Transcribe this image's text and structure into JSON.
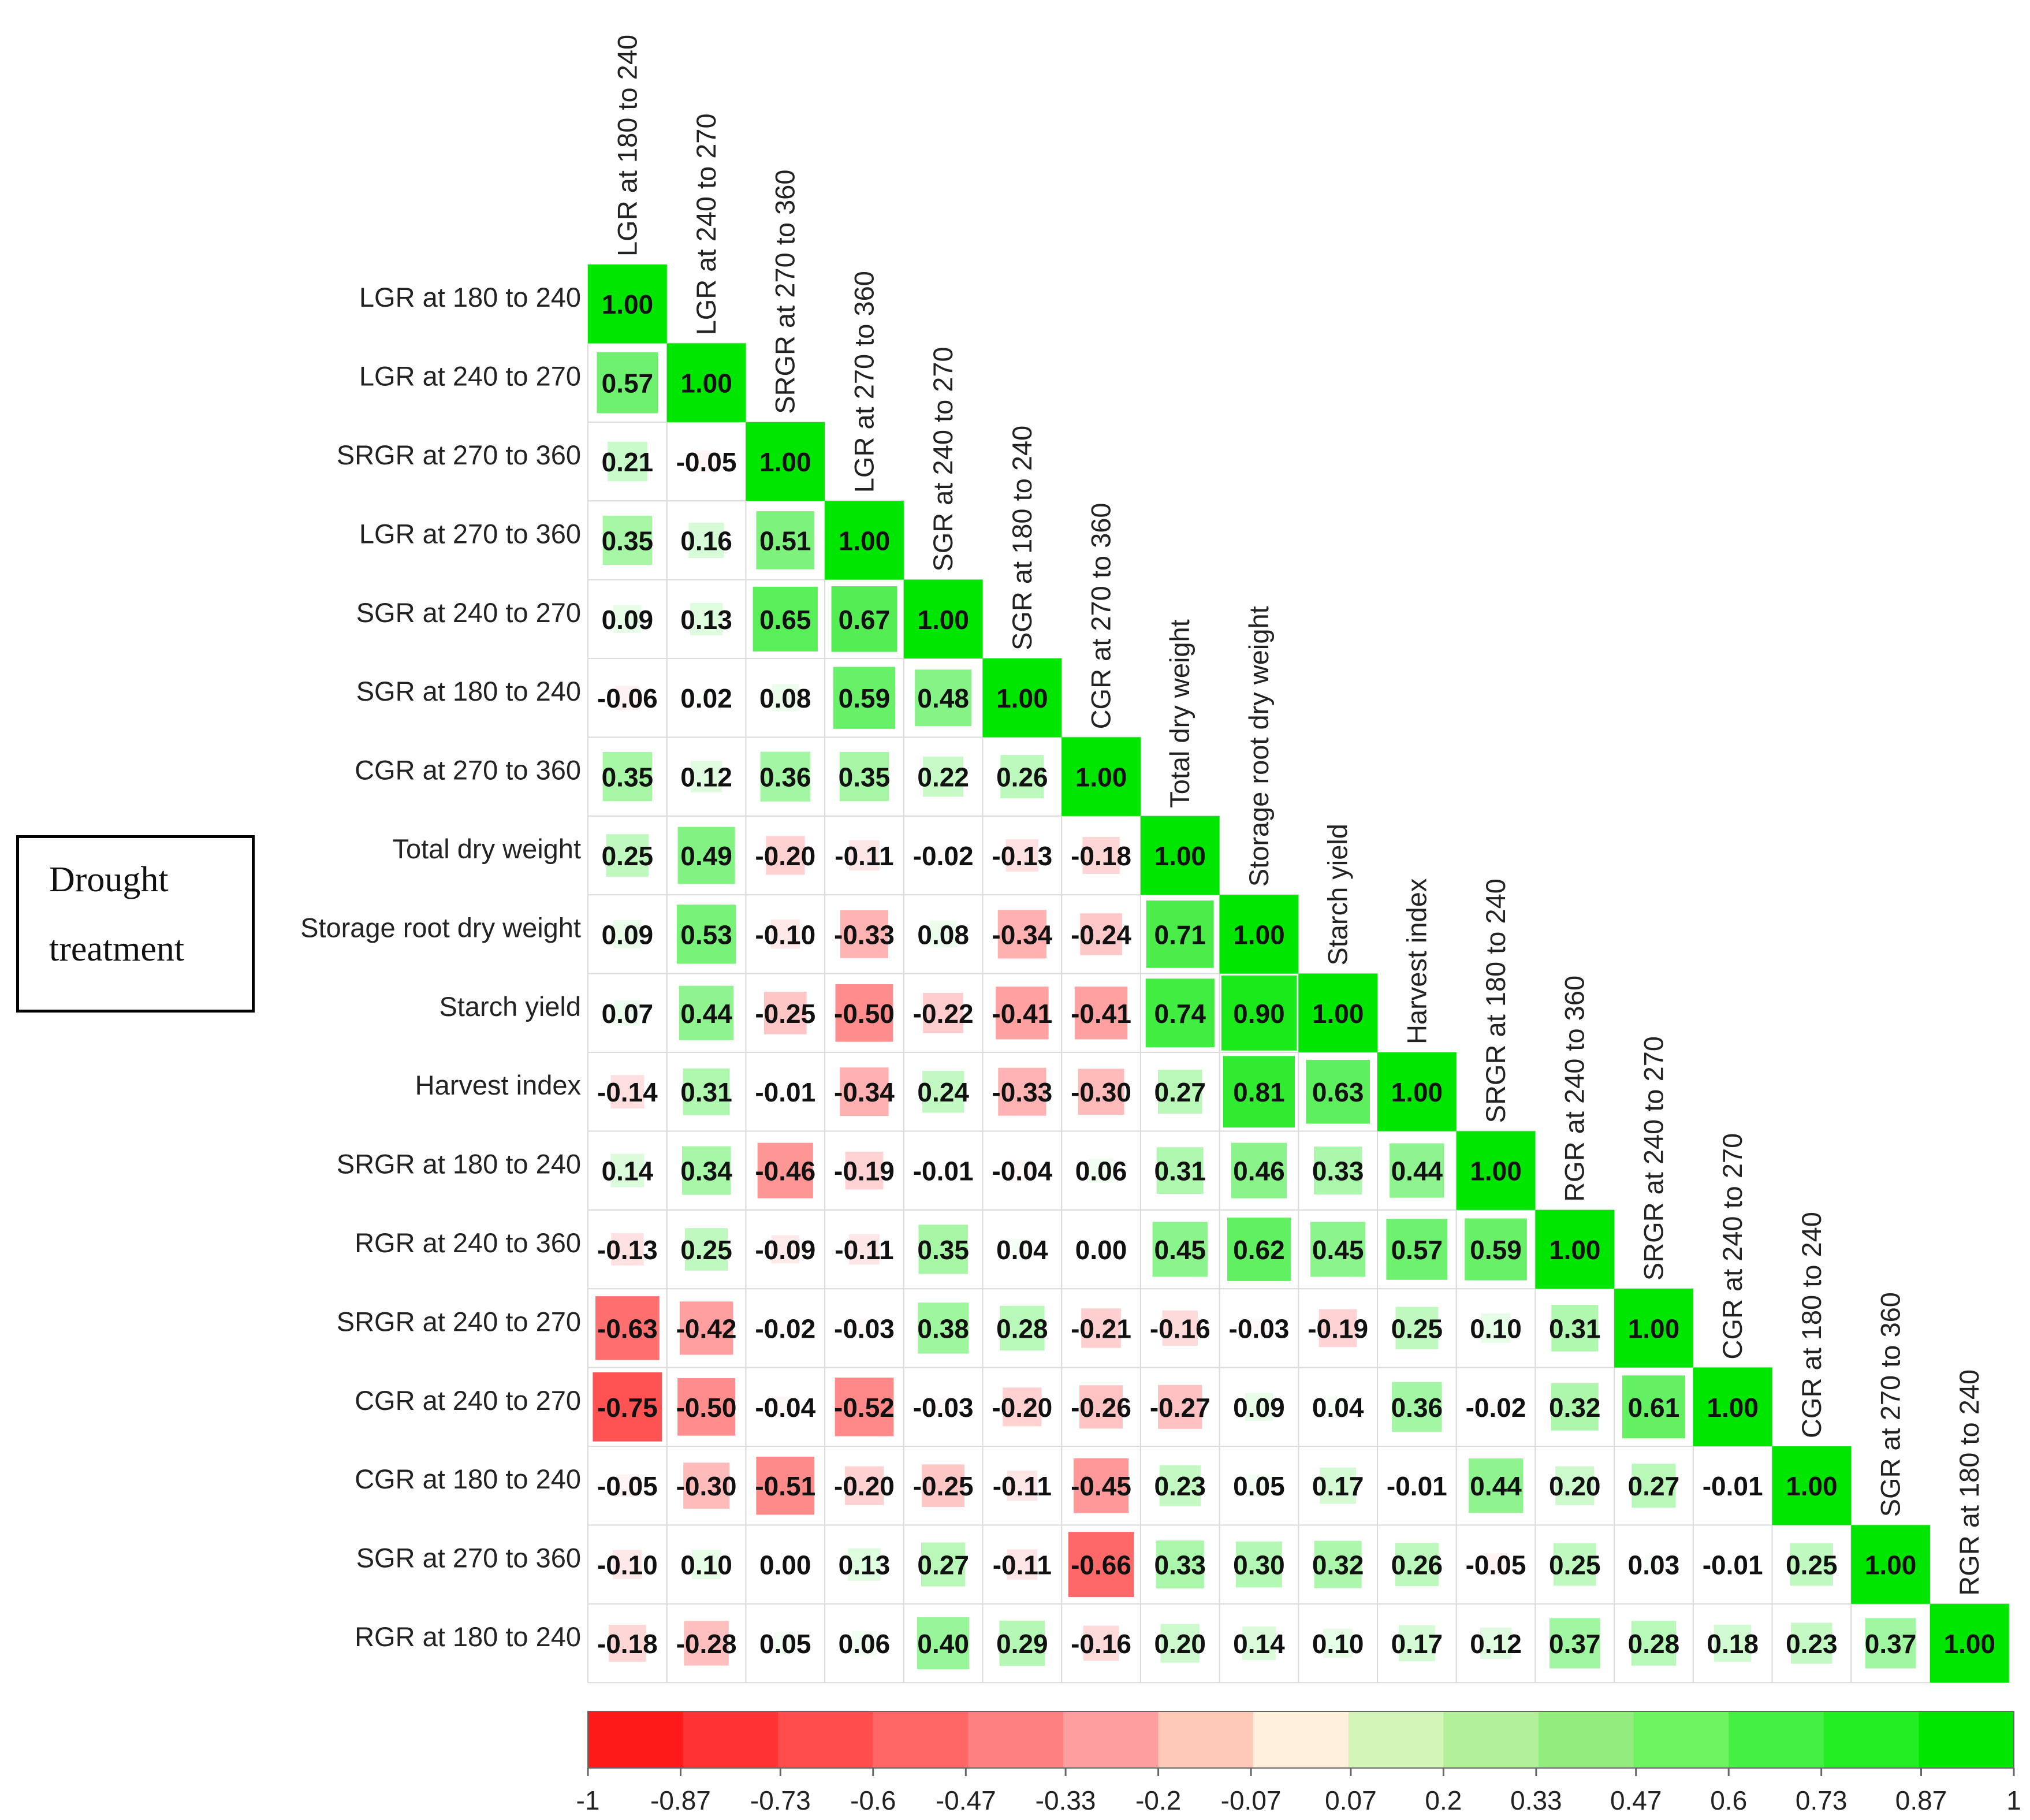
{
  "annotation": {
    "line1": "Drought",
    "line2": "treatment"
  },
  "chart_data": {
    "type": "heatmap",
    "subtype": "correlation-lower-triangle",
    "variables": [
      "LGR at 180 to 240",
      "LGR at 240 to 270",
      "SRGR at 270 to 360",
      "LGR at 270 to 360",
      "SGR at 240 to 270",
      "SGR at 180 to 240",
      "CGR at 270 to 360",
      "Total dry weight",
      "Storage root dry weight",
      "Starch yield",
      "Harvest index",
      "SRGR at 180 to 240",
      "RGR at 240 to 360",
      "SRGR at 240 to 270",
      "CGR at 240 to 270",
      "CGR at 180 to 240",
      "SGR at 270 to 360",
      "RGR at 180 to 240"
    ],
    "matrix": [
      [
        "1.00"
      ],
      [
        "0.57",
        "1.00"
      ],
      [
        "0.21",
        "-0.05",
        "1.00"
      ],
      [
        "0.35",
        "0.16",
        "0.51",
        "1.00"
      ],
      [
        "0.09",
        "0.13",
        "0.65",
        "0.67",
        "1.00"
      ],
      [
        "-0.06",
        "0.02",
        "0.08",
        "0.59",
        "0.48",
        "1.00"
      ],
      [
        "0.35",
        "0.12",
        "0.36",
        "0.35",
        "0.22",
        "0.26",
        "1.00"
      ],
      [
        "0.25",
        "0.49",
        "-0.20",
        "-0.11",
        "-0.02",
        "-0.13",
        "-0.18",
        "1.00"
      ],
      [
        "0.09",
        "0.53",
        "-0.10",
        "-0.33",
        "0.08",
        "-0.34",
        "-0.24",
        "0.71",
        "1.00"
      ],
      [
        "0.07",
        "0.44",
        "-0.25",
        "-0.50",
        "-0.22",
        "-0.41",
        "-0.41",
        "0.74",
        "0.90",
        "1.00"
      ],
      [
        "-0.14",
        "0.31",
        "-0.01",
        "-0.34",
        "0.24",
        "-0.33",
        "-0.30",
        "0.27",
        "0.81",
        "0.63",
        "1.00"
      ],
      [
        "0.14",
        "0.34",
        "-0.46",
        "-0.19",
        "-0.01",
        "-0.04",
        "0.06",
        "0.31",
        "0.46",
        "0.33",
        "0.44",
        "1.00"
      ],
      [
        "-0.13",
        "0.25",
        "-0.09",
        "-0.11",
        "0.35",
        "0.04",
        "0.00",
        "0.45",
        "0.62",
        "0.45",
        "0.57",
        "0.59",
        "1.00"
      ],
      [
        "-0.63",
        "-0.42",
        "-0.02",
        "-0.03",
        "0.38",
        "0.28",
        "-0.21",
        "-0.16",
        "-0.03",
        "-0.19",
        "0.25",
        "0.10",
        "0.31",
        "1.00"
      ],
      [
        "-0.75",
        "-0.50",
        "-0.04",
        "-0.52",
        "-0.03",
        "-0.20",
        "-0.26",
        "-0.27",
        "0.09",
        "0.04",
        "0.36",
        "-0.02",
        "0.32",
        "0.61",
        "1.00"
      ],
      [
        "-0.05",
        "-0.30",
        "-0.51",
        "-0.20",
        "-0.25",
        "-0.11",
        "-0.45",
        "0.23",
        "0.05",
        "0.17",
        "-0.01",
        "0.44",
        "0.20",
        "0.27",
        "-0.01",
        "1.00"
      ],
      [
        "-0.10",
        "0.10",
        "0.00",
        "0.13",
        "0.27",
        "-0.11",
        "-0.66",
        "0.33",
        "0.30",
        "0.32",
        "0.26",
        "-0.05",
        "0.25",
        "0.03",
        "-0.01",
        "0.25",
        "1.00"
      ],
      [
        "-0.18",
        "-0.28",
        "0.05",
        "0.06",
        "0.40",
        "0.29",
        "-0.16",
        "0.20",
        "0.14",
        "0.10",
        "0.17",
        "0.12",
        "0.37",
        "0.28",
        "0.18",
        "0.23",
        "0.37",
        "1.00"
      ]
    ],
    "colorbar": {
      "ticks": [
        "-1",
        "-0.87",
        "-0.73",
        "-0.6",
        "-0.47",
        "-0.33",
        "-0.2",
        "-0.07",
        "0.07",
        "0.2",
        "0.33",
        "0.47",
        "0.6",
        "0.73",
        "0.87",
        "1"
      ],
      "colors": [
        "#ff1a1a",
        "#ff3333",
        "#ff4d4d",
        "#ff6666",
        "#ff8080",
        "#ff9e9e",
        "#ffc9b8",
        "#fff0dc",
        "#d4f5b8",
        "#b2f09a",
        "#92ec7e",
        "#6df260",
        "#44f043",
        "#22ee22",
        "#00e600"
      ],
      "range": [
        -1,
        1
      ]
    },
    "colors": {
      "positive": "#00e600",
      "negative": "#ff1a1a",
      "neutral": "#ffffff",
      "grid": "#dcdcdc"
    }
  }
}
